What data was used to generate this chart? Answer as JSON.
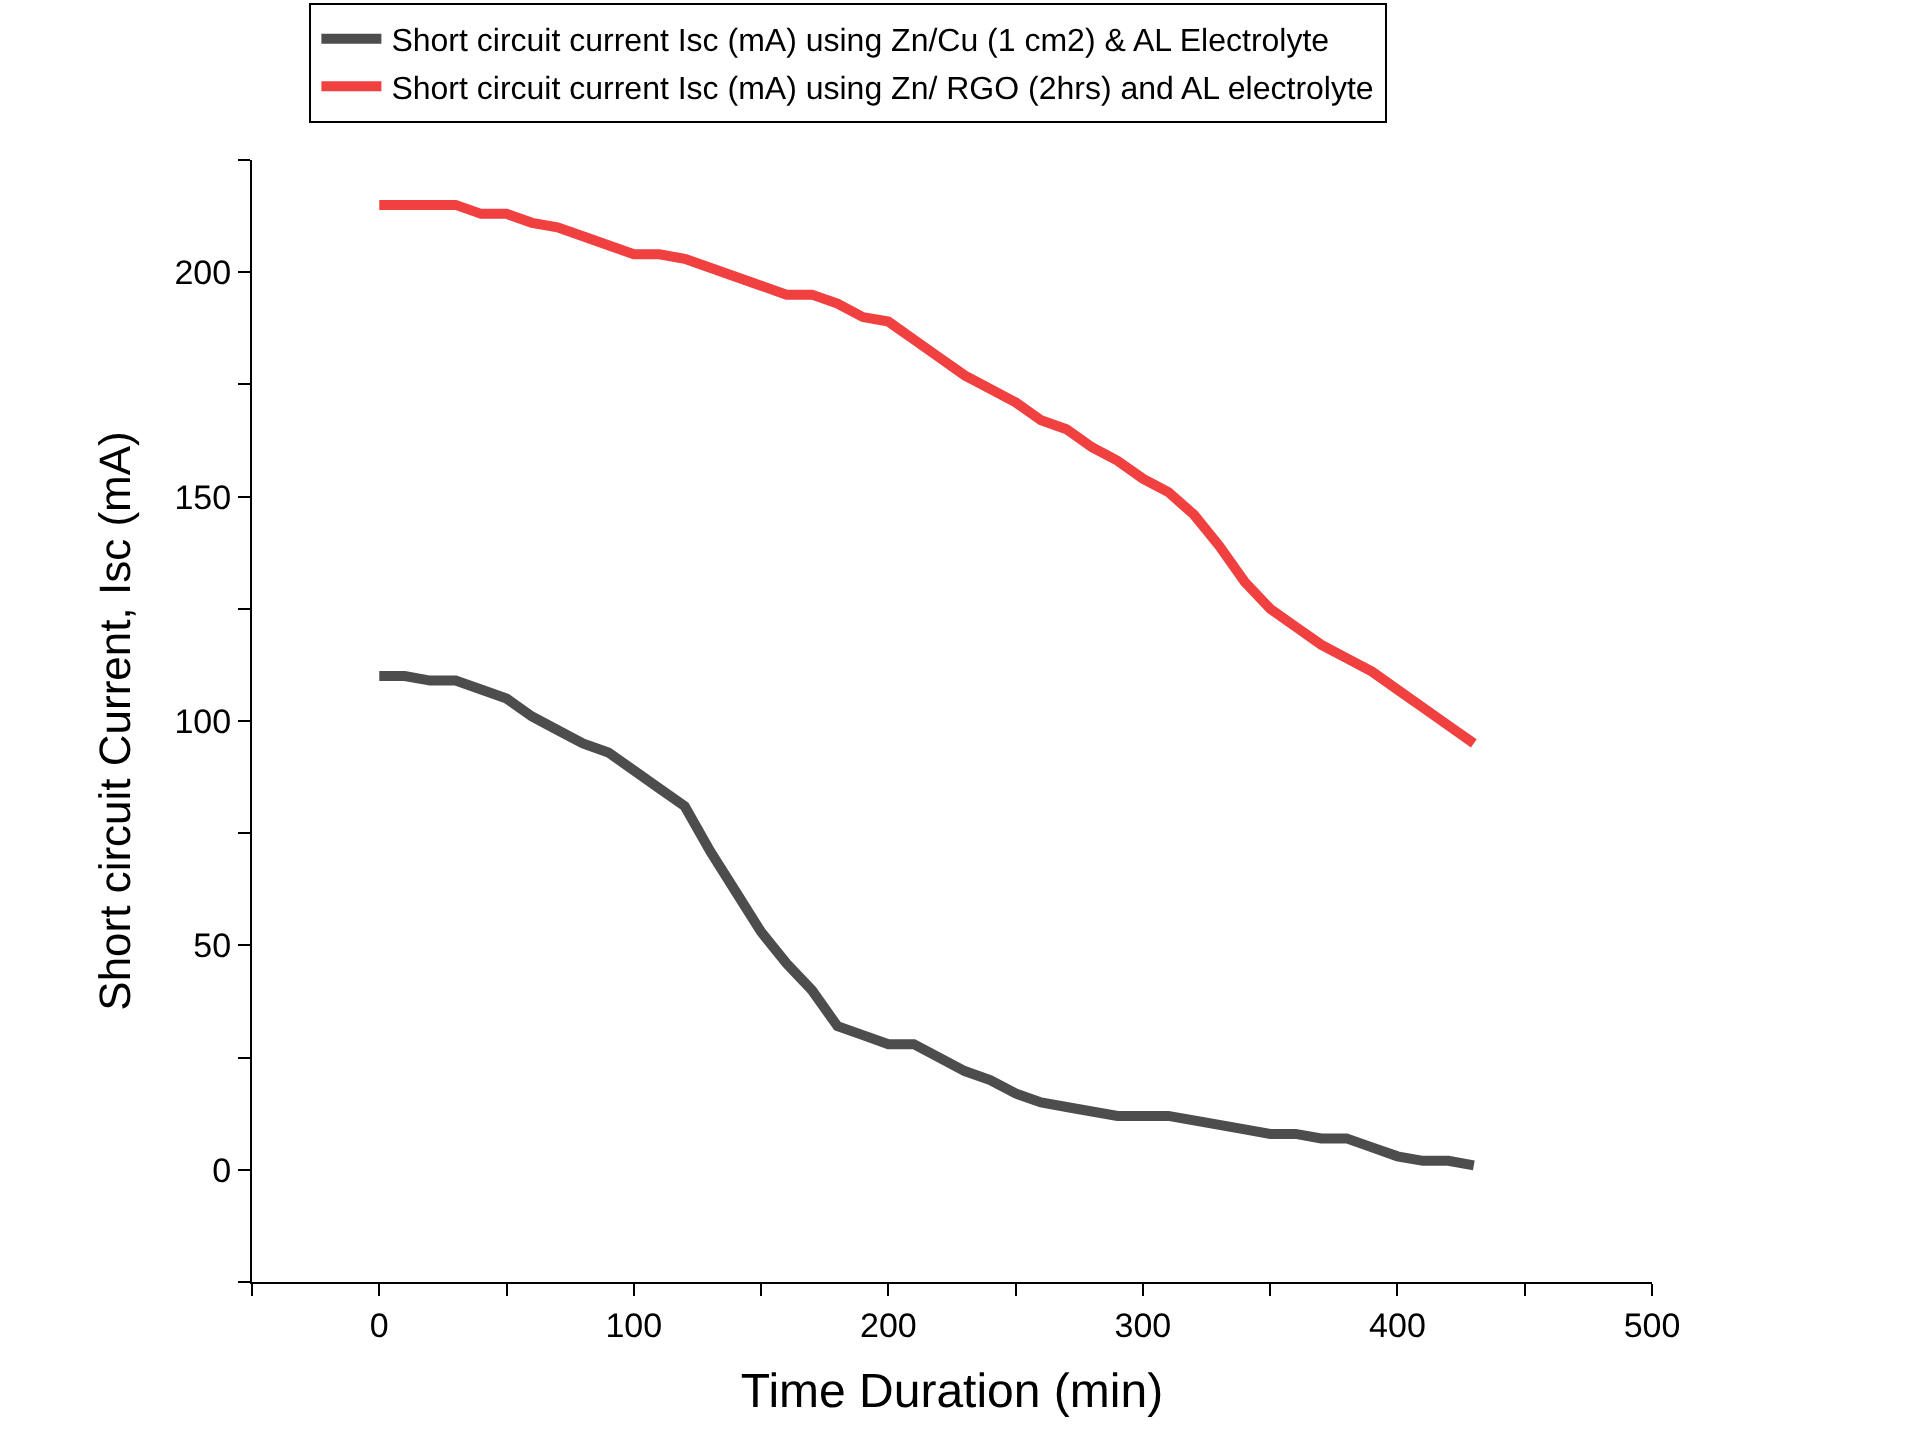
{
  "chart_data": {
    "type": "line",
    "xlabel": "Time Duration (min)",
    "ylabel": "Short circuit Current, Isc (mA)",
    "x": [
      0,
      10,
      20,
      30,
      40,
      50,
      60,
      70,
      80,
      90,
      100,
      110,
      120,
      130,
      140,
      150,
      160,
      170,
      180,
      190,
      200,
      210,
      220,
      230,
      240,
      250,
      260,
      270,
      280,
      290,
      300,
      310,
      320,
      330,
      340,
      350,
      360,
      370,
      380,
      390,
      400,
      410,
      420,
      430
    ],
    "series": [
      {
        "name": "Short circuit current Isc (mA) using Zn/Cu (1 cm2) & AL Electrolyte",
        "color": "#4d4d4d",
        "values": [
          110,
          110,
          109,
          109,
          107,
          105,
          101,
          98,
          95,
          93,
          89,
          85,
          81,
          71,
          62,
          53,
          46,
          40,
          32,
          30,
          28,
          28,
          25,
          22,
          20,
          17,
          15,
          14,
          13,
          12,
          12,
          12,
          11,
          10,
          9,
          8,
          8,
          7,
          7,
          5,
          3,
          2,
          2,
          1
        ]
      },
      {
        "name": "Short circuit current Isc (mA) using Zn/ RGO (2hrs) and AL electrolyte",
        "color": "#f04040",
        "values": [
          215,
          215,
          215,
          215,
          213,
          213,
          211,
          210,
          208,
          206,
          204,
          204,
          203,
          201,
          199,
          197,
          195,
          195,
          193,
          190,
          189,
          185,
          181,
          177,
          174,
          171,
          167,
          165,
          161,
          158,
          154,
          151,
          146,
          139,
          131,
          125,
          121,
          117,
          114,
          111,
          107,
          103,
          99,
          95
        ]
      }
    ],
    "xlim": [
      -50,
      500
    ],
    "xticks": [
      {
        "value": -50,
        "label": null
      },
      0,
      {
        "value": 50,
        "label": null
      },
      100,
      {
        "value": 150,
        "label": null
      },
      200,
      {
        "value": 250,
        "label": null
      },
      300,
      {
        "value": 350,
        "label": null
      },
      400,
      {
        "value": 450,
        "label": null
      },
      500
    ],
    "ylim": [
      -25,
      225
    ],
    "yticks": [
      {
        "value": -25,
        "label": null
      },
      0,
      {
        "value": 25,
        "label": null
      },
      50,
      {
        "value": 75,
        "label": null
      },
      100,
      {
        "value": 125,
        "label": null
      },
      150,
      {
        "value": 175,
        "label": null
      },
      200,
      {
        "value": 225,
        "label": null
      }
    ],
    "legend": "top",
    "marker": "none",
    "line_style": "solid"
  }
}
